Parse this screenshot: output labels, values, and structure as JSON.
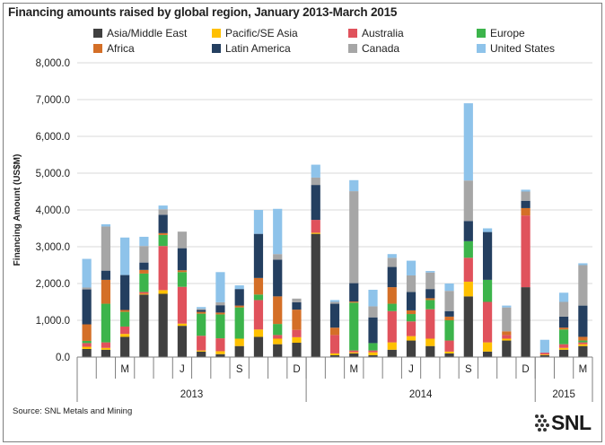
{
  "title": "Financing amounts raised by global region, January 2013-March 2015",
  "source": "Source: SNL Metals and Mining",
  "logo_text": "SNL",
  "colors": {
    "Asia/Middle East": "#404040",
    "Pacific/SE Asia": "#ffc000",
    "Australia": "#e0525c",
    "Europe": "#3cb44b",
    "Africa": "#d46f27",
    "Latin America": "#243f60",
    "Canada": "#a6a6a6",
    "United States": "#8ec3ea"
  },
  "chart_data": {
    "type": "bar",
    "stacked": true,
    "ylabel": "Financing Amount (US$M)",
    "ylim": [
      0,
      8000
    ],
    "yticks": [
      "0.0",
      "1,000.0",
      "2,000.0",
      "3,000.0",
      "4,000.0",
      "5,000.0",
      "6,000.0",
      "7,000.0",
      "8,000.0"
    ],
    "grid": true,
    "legend_position": "top",
    "month_tick_labels": [
      "",
      "",
      "M",
      "",
      "",
      "J",
      "",
      "",
      "S",
      "",
      "",
      "D",
      "",
      "",
      "M",
      "",
      "",
      "J",
      "",
      "",
      "S",
      "",
      "",
      "D",
      "",
      "",
      "M"
    ],
    "year_labels": [
      {
        "label": "2013",
        "span": 12
      },
      {
        "label": "2014",
        "span": 12
      },
      {
        "label": "2015",
        "span": 3
      }
    ],
    "series": [
      {
        "name": "Asia/Middle East",
        "values": [
          220,
          200,
          550,
          1700,
          1720,
          850,
          150,
          80,
          300,
          550,
          350,
          390,
          3350,
          50,
          100,
          50,
          200,
          450,
          300,
          100,
          1650,
          150,
          450,
          1900,
          50,
          200,
          300
        ]
      },
      {
        "name": "Pacific/SE Asia",
        "values": [
          60,
          50,
          80,
          20,
          100,
          60,
          30,
          80,
          200,
          200,
          150,
          150,
          30,
          50,
          30,
          80,
          200,
          120,
          200,
          50,
          400,
          250,
          50,
          0,
          20,
          50,
          50
        ]
      },
      {
        "name": "Australia",
        "values": [
          100,
          150,
          200,
          50,
          1200,
          1000,
          400,
          350,
          0,
          800,
          100,
          200,
          350,
          500,
          50,
          50,
          850,
          400,
          800,
          300,
          650,
          1100,
          100,
          1950,
          50,
          100,
          50
        ]
      },
      {
        "name": "Europe",
        "values": [
          60,
          1050,
          400,
          500,
          300,
          400,
          600,
          650,
          850,
          150,
          300,
          0,
          0,
          0,
          1300,
          200,
          200,
          200,
          250,
          550,
          450,
          600,
          0,
          0,
          0,
          400,
          50
        ]
      },
      {
        "name": "Africa",
        "values": [
          450,
          650,
          50,
          100,
          50,
          50,
          50,
          50,
          50,
          450,
          750,
          550,
          0,
          200,
          30,
          0,
          450,
          100,
          50,
          100,
          0,
          0,
          100,
          200,
          0,
          50,
          100
        ]
      },
      {
        "name": "Latin America",
        "values": [
          950,
          250,
          950,
          200,
          500,
          600,
          50,
          200,
          450,
          1200,
          1000,
          200,
          950,
          650,
          500,
          700,
          550,
          500,
          250,
          150,
          550,
          1300,
          0,
          200,
          0,
          300,
          850
        ]
      },
      {
        "name": "Canada",
        "values": [
          50,
          1200,
          0,
          450,
          150,
          450,
          30,
          80,
          0,
          0,
          150,
          100,
          200,
          50,
          2500,
          300,
          250,
          450,
          450,
          550,
          1100,
          0,
          650,
          250,
          0,
          400,
          1100
        ]
      },
      {
        "name": "United States",
        "values": [
          780,
          60,
          1020,
          250,
          100,
          0,
          50,
          820,
          100,
          650,
          1230,
          0,
          350,
          50,
          300,
          450,
          100,
          400,
          40,
          200,
          2100,
          100,
          50,
          50,
          350,
          250,
          50
        ]
      }
    ]
  }
}
